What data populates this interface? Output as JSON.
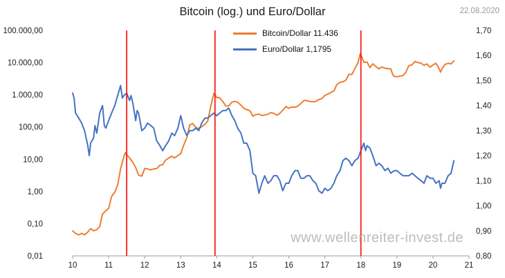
{
  "header": {
    "title": "Bitcoin (log.) und Euro/Dollar",
    "date": "22.08.2020"
  },
  "watermark": "www.wellenreiter-invest.de",
  "chart_data": {
    "type": "line",
    "title": "Bitcoin (log.) und Euro/Dollar",
    "x_range": [
      10,
      21
    ],
    "x_ticks": [
      10,
      11,
      12,
      13,
      14,
      15,
      16,
      17,
      18,
      19,
      20,
      21
    ],
    "left_axis": {
      "scale": "log",
      "min": 0.01,
      "max": 100000,
      "tick_labels": [
        "100.000,00",
        "10.000,00",
        "1.000,00",
        "100,00",
        "10,00",
        "1,00",
        "0,10",
        "0,01"
      ]
    },
    "right_axis": {
      "scale": "linear",
      "min": 0.8,
      "max": 1.7,
      "tick_labels": [
        "1,70",
        "1,60",
        "1,50",
        "1,40",
        "1,30",
        "1,20",
        "1,10",
        "1,00",
        "0,90",
        "0,80"
      ]
    },
    "vlines": [
      11.5,
      13.95,
      18.0
    ],
    "vline_color": "#ff0000",
    "legend_position": "top-center",
    "grid": false,
    "series": [
      {
        "id": "bitcoin",
        "name": "Bitcoin/Dollar 11.436",
        "axis": "left",
        "color": "#ED7D31",
        "last_value_label": "11.436",
        "points": [
          [
            10.0,
            0.06
          ],
          [
            10.08,
            0.05
          ],
          [
            10.17,
            0.045
          ],
          [
            10.25,
            0.05
          ],
          [
            10.33,
            0.045
          ],
          [
            10.42,
            0.055
          ],
          [
            10.5,
            0.07
          ],
          [
            10.58,
            0.06
          ],
          [
            10.67,
            0.065
          ],
          [
            10.75,
            0.08
          ],
          [
            10.83,
            0.2
          ],
          [
            10.92,
            0.25
          ],
          [
            11.0,
            0.3
          ],
          [
            11.08,
            0.7
          ],
          [
            11.17,
            0.95
          ],
          [
            11.25,
            1.6
          ],
          [
            11.33,
            5
          ],
          [
            11.42,
            12
          ],
          [
            11.46,
            16
          ],
          [
            11.5,
            14
          ],
          [
            11.58,
            11
          ],
          [
            11.67,
            8
          ],
          [
            11.75,
            5.5
          ],
          [
            11.83,
            3.2
          ],
          [
            11.92,
            3.0
          ],
          [
            12.0,
            5.2
          ],
          [
            12.08,
            5.0
          ],
          [
            12.17,
            4.7
          ],
          [
            12.25,
            5.0
          ],
          [
            12.33,
            5.1
          ],
          [
            12.42,
            6.5
          ],
          [
            12.5,
            6.8
          ],
          [
            12.58,
            9.4
          ],
          [
            12.67,
            11
          ],
          [
            12.75,
            12.4
          ],
          [
            12.83,
            11
          ],
          [
            12.92,
            13
          ],
          [
            13.0,
            15
          ],
          [
            13.08,
            27
          ],
          [
            13.17,
            47
          ],
          [
            13.25,
            117
          ],
          [
            13.33,
            128
          ],
          [
            13.42,
            97
          ],
          [
            13.5,
            90
          ],
          [
            13.58,
            102
          ],
          [
            13.67,
            122
          ],
          [
            13.75,
            152
          ],
          [
            13.83,
            420
          ],
          [
            13.92,
            1120
          ],
          [
            13.97,
            940
          ],
          [
            14.0,
            810
          ],
          [
            14.06,
            840
          ],
          [
            14.17,
            620
          ],
          [
            14.25,
            450
          ],
          [
            14.33,
            455
          ],
          [
            14.42,
            590
          ],
          [
            14.5,
            625
          ],
          [
            14.58,
            585
          ],
          [
            14.67,
            480
          ],
          [
            14.75,
            380
          ],
          [
            14.83,
            350
          ],
          [
            14.92,
            320
          ],
          [
            15.0,
            218
          ],
          [
            15.08,
            242
          ],
          [
            15.17,
            252
          ],
          [
            15.25,
            228
          ],
          [
            15.33,
            237
          ],
          [
            15.42,
            250
          ],
          [
            15.5,
            282
          ],
          [
            15.58,
            268
          ],
          [
            15.67,
            232
          ],
          [
            15.75,
            268
          ],
          [
            15.83,
            330
          ],
          [
            15.92,
            434
          ],
          [
            16.0,
            382
          ],
          [
            16.08,
            420
          ],
          [
            16.17,
            412
          ],
          [
            16.25,
            448
          ],
          [
            16.33,
            532
          ],
          [
            16.42,
            672
          ],
          [
            16.5,
            660
          ],
          [
            16.58,
            622
          ],
          [
            16.67,
            604
          ],
          [
            16.75,
            632
          ],
          [
            16.83,
            710
          ],
          [
            16.92,
            770
          ],
          [
            17.0,
            965
          ],
          [
            17.08,
            1050
          ],
          [
            17.17,
            1190
          ],
          [
            17.25,
            1330
          ],
          [
            17.33,
            2050
          ],
          [
            17.42,
            2450
          ],
          [
            17.5,
            2550
          ],
          [
            17.58,
            2850
          ],
          [
            17.67,
            4350
          ],
          [
            17.75,
            4300
          ],
          [
            17.83,
            6450
          ],
          [
            17.92,
            10200
          ],
          [
            17.98,
            19000
          ],
          [
            18.04,
            13800
          ],
          [
            18.08,
            10200
          ],
          [
            18.17,
            10400
          ],
          [
            18.25,
            7000
          ],
          [
            18.33,
            9200
          ],
          [
            18.42,
            7500
          ],
          [
            18.5,
            6400
          ],
          [
            18.58,
            7300
          ],
          [
            18.67,
            6700
          ],
          [
            18.75,
            6500
          ],
          [
            18.83,
            6350
          ],
          [
            18.88,
            4300
          ],
          [
            18.92,
            3750
          ],
          [
            19.0,
            3600
          ],
          [
            19.08,
            3850
          ],
          [
            19.17,
            3950
          ],
          [
            19.25,
            5100
          ],
          [
            19.33,
            8050
          ],
          [
            19.42,
            8600
          ],
          [
            19.5,
            10900
          ],
          [
            19.58,
            10100
          ],
          [
            19.67,
            9600
          ],
          [
            19.75,
            8250
          ],
          [
            19.83,
            9150
          ],
          [
            19.92,
            7200
          ],
          [
            20.0,
            8500
          ],
          [
            20.08,
            9550
          ],
          [
            20.17,
            6450
          ],
          [
            20.21,
            5050
          ],
          [
            20.25,
            6450
          ],
          [
            20.33,
            8800
          ],
          [
            20.42,
            9500
          ],
          [
            20.5,
            9150
          ],
          [
            20.58,
            11436
          ]
        ]
      },
      {
        "id": "euro",
        "name": "Euro/Dollar 1,1795",
        "axis": "right",
        "color": "#4472C4",
        "last_value_label": "1,1795",
        "points": [
          [
            10.0,
            1.45
          ],
          [
            10.04,
            1.43
          ],
          [
            10.08,
            1.37
          ],
          [
            10.17,
            1.35
          ],
          [
            10.25,
            1.33
          ],
          [
            10.33,
            1.3
          ],
          [
            10.42,
            1.24
          ],
          [
            10.46,
            1.2
          ],
          [
            10.5,
            1.25
          ],
          [
            10.58,
            1.27
          ],
          [
            10.62,
            1.32
          ],
          [
            10.67,
            1.29
          ],
          [
            10.75,
            1.37
          ],
          [
            10.83,
            1.4
          ],
          [
            10.88,
            1.32
          ],
          [
            10.92,
            1.31
          ],
          [
            11.0,
            1.34
          ],
          [
            11.08,
            1.37
          ],
          [
            11.17,
            1.4
          ],
          [
            11.25,
            1.44
          ],
          [
            11.33,
            1.48
          ],
          [
            11.38,
            1.43
          ],
          [
            11.42,
            1.44
          ],
          [
            11.5,
            1.45
          ],
          [
            11.58,
            1.42
          ],
          [
            11.62,
            1.44
          ],
          [
            11.67,
            1.41
          ],
          [
            11.75,
            1.34
          ],
          [
            11.79,
            1.38
          ],
          [
            11.83,
            1.37
          ],
          [
            11.92,
            1.3
          ],
          [
            12.0,
            1.31
          ],
          [
            12.08,
            1.33
          ],
          [
            12.17,
            1.32
          ],
          [
            12.25,
            1.31
          ],
          [
            12.33,
            1.26
          ],
          [
            12.42,
            1.24
          ],
          [
            12.5,
            1.22
          ],
          [
            12.58,
            1.24
          ],
          [
            12.67,
            1.26
          ],
          [
            12.75,
            1.29
          ],
          [
            12.83,
            1.28
          ],
          [
            12.92,
            1.31
          ],
          [
            13.0,
            1.36
          ],
          [
            13.08,
            1.31
          ],
          [
            13.17,
            1.28
          ],
          [
            13.25,
            1.3
          ],
          [
            13.33,
            1.3
          ],
          [
            13.42,
            1.31
          ],
          [
            13.5,
            1.3
          ],
          [
            13.58,
            1.33
          ],
          [
            13.67,
            1.35
          ],
          [
            13.75,
            1.35
          ],
          [
            13.83,
            1.36
          ],
          [
            13.92,
            1.37
          ],
          [
            14.0,
            1.36
          ],
          [
            14.08,
            1.37
          ],
          [
            14.17,
            1.38
          ],
          [
            14.25,
            1.38
          ],
          [
            14.33,
            1.39
          ],
          [
            14.42,
            1.36
          ],
          [
            14.5,
            1.34
          ],
          [
            14.58,
            1.31
          ],
          [
            14.67,
            1.29
          ],
          [
            14.75,
            1.25
          ],
          [
            14.83,
            1.25
          ],
          [
            14.92,
            1.22
          ],
          [
            15.0,
            1.13
          ],
          [
            15.08,
            1.12
          ],
          [
            15.17,
            1.05
          ],
          [
            15.25,
            1.09
          ],
          [
            15.33,
            1.12
          ],
          [
            15.42,
            1.09
          ],
          [
            15.5,
            1.1
          ],
          [
            15.58,
            1.12
          ],
          [
            15.67,
            1.12
          ],
          [
            15.75,
            1.1
          ],
          [
            15.83,
            1.06
          ],
          [
            15.92,
            1.09
          ],
          [
            16.0,
            1.09
          ],
          [
            16.08,
            1.12
          ],
          [
            16.17,
            1.14
          ],
          [
            16.25,
            1.14
          ],
          [
            16.33,
            1.11
          ],
          [
            16.42,
            1.11
          ],
          [
            16.5,
            1.12
          ],
          [
            16.58,
            1.12
          ],
          [
            16.67,
            1.1
          ],
          [
            16.75,
            1.09
          ],
          [
            16.83,
            1.06
          ],
          [
            16.92,
            1.05
          ],
          [
            17.0,
            1.07
          ],
          [
            17.08,
            1.06
          ],
          [
            17.17,
            1.07
          ],
          [
            17.25,
            1.09
          ],
          [
            17.33,
            1.12
          ],
          [
            17.42,
            1.14
          ],
          [
            17.5,
            1.18
          ],
          [
            17.58,
            1.19
          ],
          [
            17.67,
            1.18
          ],
          [
            17.75,
            1.16
          ],
          [
            17.83,
            1.18
          ],
          [
            17.92,
            1.19
          ],
          [
            18.0,
            1.22
          ],
          [
            18.08,
            1.25
          ],
          [
            18.13,
            1.22
          ],
          [
            18.17,
            1.24
          ],
          [
            18.25,
            1.23
          ],
          [
            18.33,
            1.2
          ],
          [
            18.42,
            1.16
          ],
          [
            18.5,
            1.17
          ],
          [
            18.58,
            1.16
          ],
          [
            18.67,
            1.14
          ],
          [
            18.75,
            1.15
          ],
          [
            18.83,
            1.13
          ],
          [
            18.92,
            1.14
          ],
          [
            19.0,
            1.14
          ],
          [
            19.08,
            1.13
          ],
          [
            19.17,
            1.12
          ],
          [
            19.25,
            1.12
          ],
          [
            19.33,
            1.12
          ],
          [
            19.42,
            1.13
          ],
          [
            19.5,
            1.12
          ],
          [
            19.58,
            1.11
          ],
          [
            19.67,
            1.1
          ],
          [
            19.75,
            1.09
          ],
          [
            19.83,
            1.12
          ],
          [
            19.92,
            1.11
          ],
          [
            20.0,
            1.11
          ],
          [
            20.08,
            1.09
          ],
          [
            20.17,
            1.1
          ],
          [
            20.21,
            1.07
          ],
          [
            20.25,
            1.09
          ],
          [
            20.33,
            1.09
          ],
          [
            20.42,
            1.12
          ],
          [
            20.5,
            1.13
          ],
          [
            20.58,
            1.18
          ]
        ]
      }
    ]
  }
}
